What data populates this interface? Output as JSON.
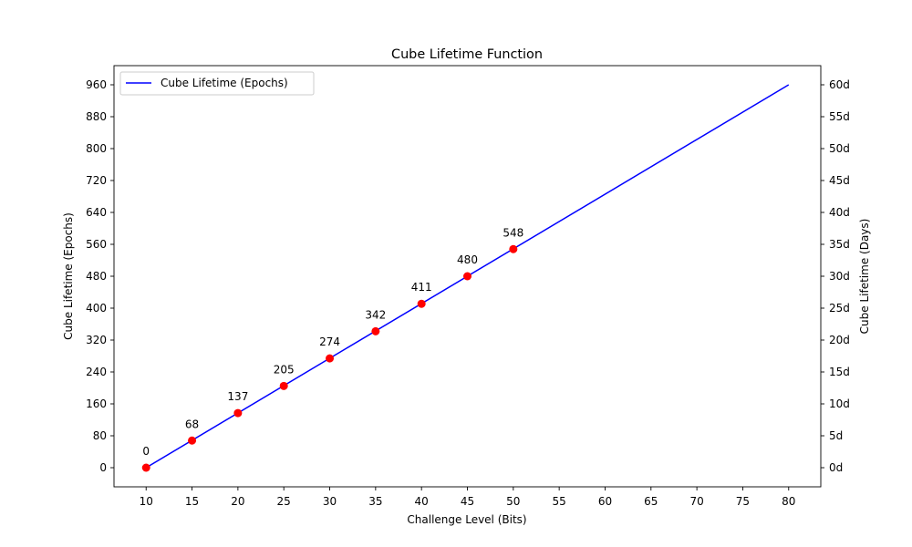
{
  "chart_data": {
    "type": "line",
    "title": "Cube Lifetime Function",
    "xlabel": "Challenge Level (Bits)",
    "ylabel": "Cube Lifetime (Epochs)",
    "ylabel_right": "Cube Lifetime (Days)",
    "xlim": [
      6.5,
      83.5
    ],
    "ylim": [
      -48,
      1008
    ],
    "x_ticks": [
      10,
      15,
      20,
      25,
      30,
      35,
      40,
      45,
      50,
      55,
      60,
      65,
      70,
      75,
      80
    ],
    "y_ticks": [
      0,
      80,
      160,
      240,
      320,
      400,
      480,
      560,
      640,
      720,
      800,
      880,
      960
    ],
    "y_right_ticks": [
      0,
      80,
      160,
      240,
      320,
      400,
      480,
      560,
      640,
      720,
      800,
      880,
      960
    ],
    "y_right_tick_labels": [
      "0d",
      "5d",
      "10d",
      "15d",
      "20d",
      "25d",
      "30d",
      "35d",
      "40d",
      "45d",
      "50d",
      "55d",
      "60d"
    ],
    "legend_position": "top-left",
    "grid": false,
    "series": [
      {
        "name": "Cube Lifetime (Epochs)",
        "kind": "line",
        "color": "#0000ff",
        "x": [
          10,
          80
        ],
        "y": [
          0,
          960
        ]
      },
      {
        "kind": "points",
        "color": "#ff0000",
        "x": [
          10,
          15,
          20,
          25,
          30,
          35,
          40,
          45,
          50
        ],
        "y": [
          0,
          68,
          137,
          205,
          274,
          342,
          411,
          480,
          548
        ],
        "labels": [
          "0",
          "68",
          "137",
          "205",
          "274",
          "342",
          "411",
          "480",
          "548"
        ]
      }
    ]
  }
}
